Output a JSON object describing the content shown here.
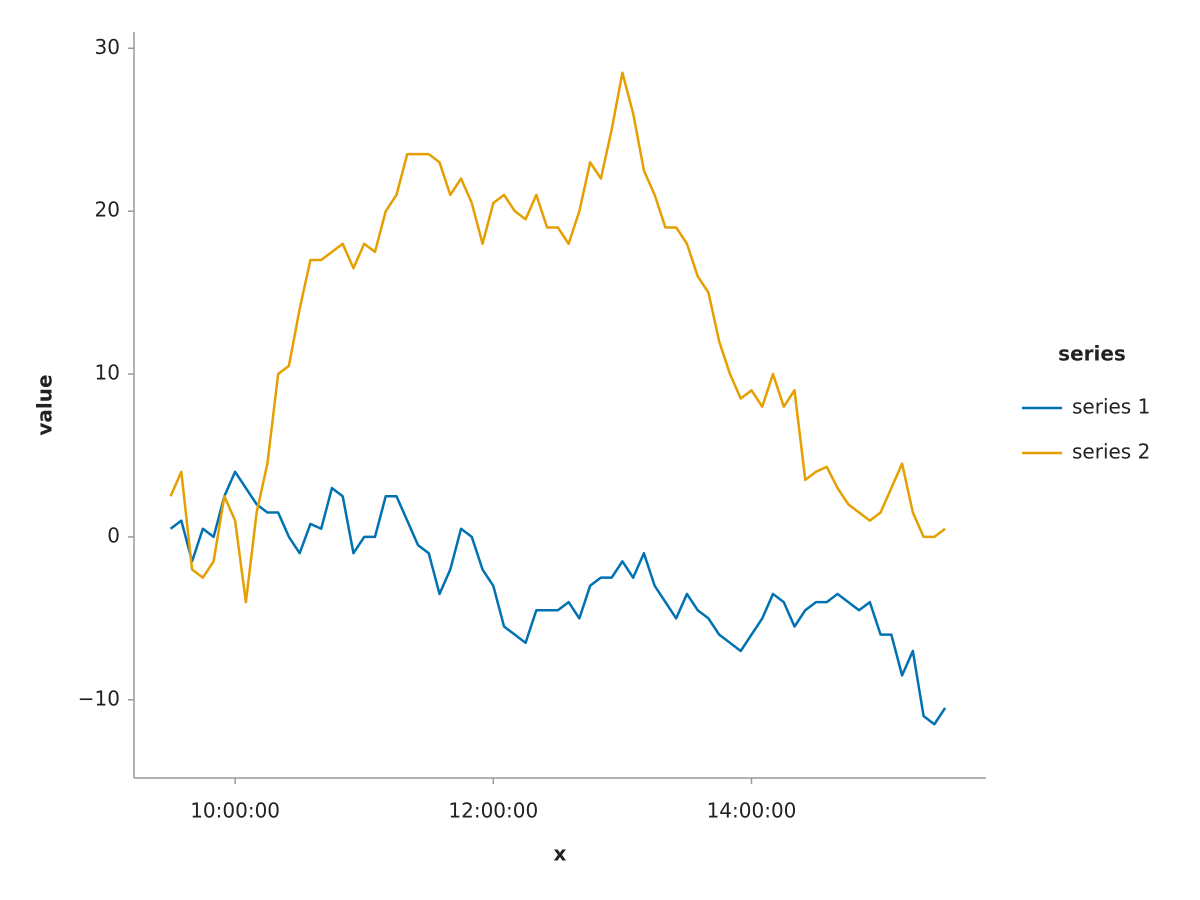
{
  "chart_data": {
    "type": "line",
    "x_label": "x",
    "y_label": "value",
    "legend_title": "series",
    "legend": "right",
    "x": [
      "09:30:00",
      "09:35:00",
      "09:40:00",
      "09:45:00",
      "09:50:00",
      "09:55:00",
      "10:00:00",
      "10:05:00",
      "10:10:00",
      "10:15:00",
      "10:20:00",
      "10:25:00",
      "10:30:00",
      "10:35:00",
      "10:40:00",
      "10:45:00",
      "10:50:00",
      "10:55:00",
      "11:00:00",
      "11:05:00",
      "11:10:00",
      "11:15:00",
      "11:20:00",
      "11:25:00",
      "11:30:00",
      "11:35:00",
      "11:40:00",
      "11:45:00",
      "11:50:00",
      "11:55:00",
      "12:00:00",
      "12:05:00",
      "12:10:00",
      "12:15:00",
      "12:20:00",
      "12:25:00",
      "12:30:00",
      "12:35:00",
      "12:40:00",
      "12:45:00",
      "12:50:00",
      "12:55:00",
      "13:00:00",
      "13:05:00",
      "13:10:00",
      "13:15:00",
      "13:20:00",
      "13:25:00",
      "13:30:00",
      "13:35:00",
      "13:40:00",
      "13:45:00",
      "13:50:00",
      "13:55:00",
      "14:00:00",
      "14:05:00",
      "14:10:00",
      "14:15:00",
      "14:20:00",
      "14:25:00",
      "14:30:00",
      "14:35:00",
      "14:40:00",
      "14:45:00",
      "14:50:00",
      "14:55:00",
      "15:00:00",
      "15:05:00",
      "15:10:00",
      "15:15:00",
      "15:20:00",
      "15:25:00",
      "15:30:00"
    ],
    "series": [
      {
        "name": "series 1",
        "color": "#0072b2",
        "values": [
          0.5,
          1,
          -1.5,
          0.5,
          0,
          2.5,
          4,
          3,
          2,
          1.5,
          1.5,
          0,
          -1,
          0.8,
          0.5,
          3,
          2.5,
          -1,
          0,
          0,
          2.5,
          2.5,
          1,
          -0.5,
          -1,
          -3.5,
          -2,
          0.5,
          0,
          -2,
          -3,
          -5.5,
          -6,
          -6.5,
          -4.5,
          -4.5,
          -4.5,
          -4,
          -5,
          -3,
          -2.5,
          -2.5,
          -1.5,
          -2.5,
          -1,
          -3,
          -4,
          -5,
          -3.5,
          -4.5,
          -5,
          -6,
          -6.5,
          -7,
          -6,
          -5,
          -3.5,
          -4,
          -5.5,
          -4.5,
          -4,
          -4,
          -3.5,
          -4,
          -4.5,
          -4,
          -6,
          -6,
          -8.5,
          -7,
          -11,
          -11.5,
          -10.5
        ]
      },
      {
        "name": "series 2",
        "color": "#e69f00",
        "values": [
          2.5,
          4,
          -2,
          -2.5,
          -1.5,
          2.5,
          1,
          -4,
          1.5,
          4.5,
          10,
          10.5,
          14,
          17,
          17,
          17.5,
          18,
          16.5,
          18,
          17.5,
          20,
          21,
          23.5,
          23.5,
          23.5,
          23,
          21,
          22,
          20.5,
          18,
          20.5,
          21,
          20,
          19.5,
          21,
          19,
          19,
          18,
          20,
          23,
          22,
          25,
          28.5,
          26,
          22.5,
          21,
          19,
          19,
          18,
          16,
          15,
          12,
          10,
          8.5,
          9,
          8,
          10,
          8,
          9,
          3.5,
          4,
          4.3,
          3,
          2,
          1.5,
          1,
          1.5,
          3,
          4.5,
          1.5,
          0,
          0,
          0.5
        ]
      }
    ],
    "xlim": [
      "09:13:00",
      "15:49:00"
    ],
    "xticks": [
      "10:00:00",
      "12:00:00",
      "14:00:00"
    ],
    "ylim": [
      -14.8,
      31
    ],
    "yticks": [
      {
        "value": -10,
        "label": "−10"
      },
      0,
      10,
      20,
      30
    ],
    "grid": false
  }
}
